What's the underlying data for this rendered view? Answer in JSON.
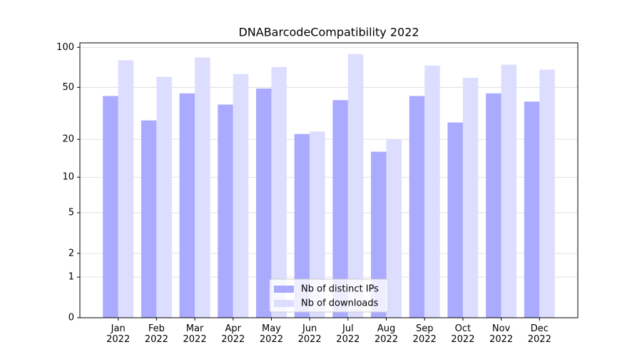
{
  "chart_data": {
    "type": "bar",
    "title": "DNABarcodeCompatibility 2022",
    "categories": [
      "Jan\n2022",
      "Feb\n2022",
      "Mar\n2022",
      "Apr\n2022",
      "May\n2022",
      "Jun\n2022",
      "Jul\n2022",
      "Aug\n2022",
      "Sep\n2022",
      "Oct\n2022",
      "Nov\n2022",
      "Dec\n2022"
    ],
    "series": [
      {
        "name": "Nb of distinct IPs",
        "color": "#aaaaff",
        "values": [
          43,
          28,
          45,
          37,
          49,
          22,
          40,
          16,
          43,
          27,
          45,
          39
        ]
      },
      {
        "name": "Nb of downloads",
        "color": "#ddddff",
        "values": [
          80,
          60,
          84,
          63,
          71,
          23,
          89,
          20,
          73,
          59,
          74,
          68
        ]
      }
    ],
    "yscale": "log1p",
    "ylim": [
      0,
      108
    ],
    "yticks": [
      0,
      1,
      2,
      5,
      10,
      20,
      50,
      100
    ],
    "grid": true,
    "legend": "lower center"
  }
}
